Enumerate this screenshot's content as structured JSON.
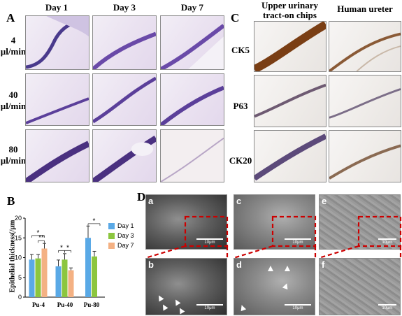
{
  "panel_a": {
    "label": "A",
    "columns": [
      "Day 1",
      "Day 3",
      "Day 7"
    ],
    "rows": [
      {
        "line1": "4",
        "line2": "µl/min"
      },
      {
        "line1": "40",
        "line2": "µl/min"
      },
      {
        "line1": "80",
        "line2": "µl/min"
      }
    ]
  },
  "panel_c": {
    "label": "C",
    "columns": [
      {
        "line1": "Upper urinary",
        "line2": "tract-on chips"
      },
      {
        "line1": "Human ureter",
        "line2": ""
      }
    ],
    "rows": [
      "CK5",
      "P63",
      "CK20"
    ]
  },
  "panel_d": {
    "label": "D",
    "tiles": [
      {
        "letter": "a",
        "scale": "10μm"
      },
      {
        "letter": "c",
        "scale": "10μm"
      },
      {
        "letter": "e",
        "scale": "10μm"
      },
      {
        "letter": "b",
        "scale": "10μm"
      },
      {
        "letter": "d",
        "scale": "10μm"
      },
      {
        "letter": "f",
        "scale": "10μm"
      }
    ]
  },
  "panel_b": {
    "label": "B",
    "significance_marks": [
      "*",
      "**",
      "*",
      "*",
      "*"
    ]
  },
  "colors": {
    "day1": "#5aa9e6",
    "day3": "#8cc63f",
    "day7": "#f4b183",
    "zoom_box": "#cc0000"
  },
  "chart_data": {
    "type": "bar",
    "categories": [
      "Pu-4",
      "Pu-40",
      "Pu-80"
    ],
    "ylabel": "Epithelial thickness(/μm",
    "ylim": [
      0,
      20
    ],
    "yticks": [
      "0",
      "5",
      "10",
      "15",
      "20"
    ],
    "legend_position": "right",
    "series": [
      {
        "name": "Day 1",
        "values": [
          9.5,
          7.8,
          15.0
        ],
        "errors": [
          1.3,
          1.6,
          3.0
        ]
      },
      {
        "name": "Day 3",
        "values": [
          9.8,
          9.5,
          10.3
        ],
        "errors": [
          1.0,
          1.5,
          1.3
        ]
      },
      {
        "name": "Day 7",
        "values": [
          12.3,
          6.8,
          null
        ],
        "errors": [
          1.3,
          0.6,
          null
        ]
      }
    ]
  }
}
